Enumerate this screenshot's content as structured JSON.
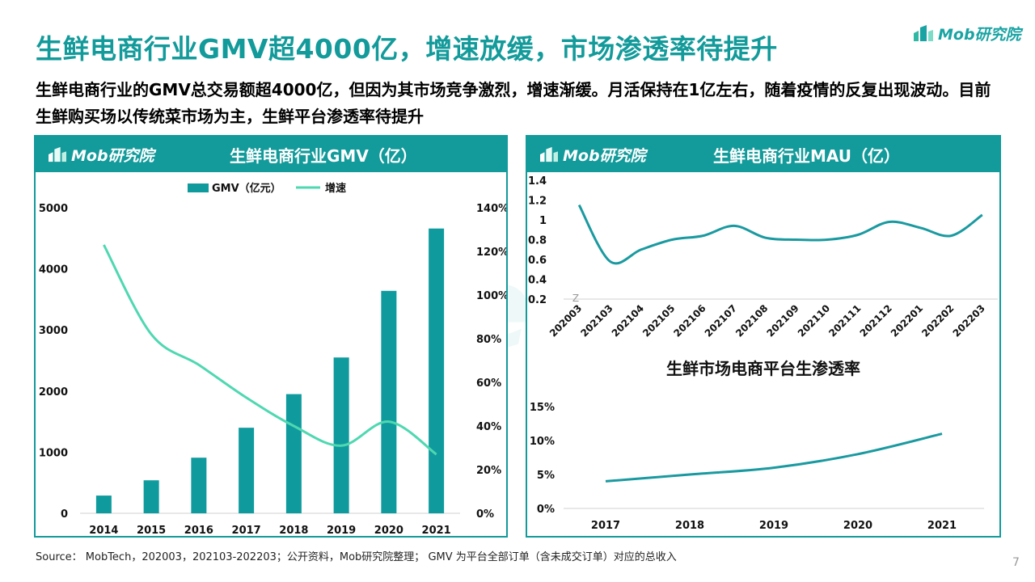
{
  "title": "生鲜电商行业GMV超4000亿，增速放缓，市场渗透率待提升",
  "subtitle": "生鲜电商行业的GMV总交易额超4000亿，但因为其市场竞争激烈，增速渐缓。月活保持在1亿左右，随着疫情的反复出现波动。目前生鲜购买场以传统菜市场为主，生鲜平台渗透率待提升",
  "logo": {
    "text": "Mob研究院"
  },
  "watermark": "MobTech袤博",
  "colors": {
    "accent": "#139a9a",
    "bar": "#0f9b9e",
    "growth_line": "#4fd8b0",
    "line": "#1a9aa0"
  },
  "chart_data": [
    {
      "type": "bar",
      "title": "生鲜电商行业GMV（亿）",
      "categories": [
        "2014",
        "2015",
        "2016",
        "2017",
        "2018",
        "2019",
        "2020",
        "2021"
      ],
      "series": [
        {
          "name": "GMV（亿元）",
          "type": "bar",
          "axis": "left",
          "values": [
            290,
            540,
            910,
            1400,
            1950,
            2550,
            3640,
            4660
          ]
        },
        {
          "name": "增速",
          "type": "line",
          "axis": "right",
          "values": [
            123,
            82,
            68,
            53,
            40,
            31,
            42,
            27
          ]
        }
      ],
      "y_left": {
        "ticks": [
          "0",
          "1000",
          "2000",
          "3000",
          "4000",
          "5000"
        ],
        "ylim": [
          0,
          5000
        ]
      },
      "y_right": {
        "ticks": [
          "0%",
          "20%",
          "40%",
          "60%",
          "80%",
          "100%",
          "120%",
          "140%"
        ],
        "ylim": [
          0,
          140
        ]
      },
      "legend": "top-center",
      "grid": false
    },
    {
      "type": "line",
      "title": "生鲜电商行业MAU（亿）",
      "categories": [
        "202003",
        "202103",
        "202104",
        "202105",
        "202106",
        "202107",
        "202108",
        "202109",
        "202110",
        "202111",
        "202112",
        "202201",
        "202202",
        "202203"
      ],
      "values": [
        1.15,
        0.58,
        0.7,
        0.8,
        0.84,
        0.94,
        0.82,
        0.8,
        0.8,
        0.85,
        0.98,
        0.92,
        0.84,
        1.05
      ],
      "y_ticks": [
        "0.2",
        "0.4",
        "0.6",
        "0.8",
        "1",
        "1.2",
        "1.4"
      ],
      "ylim": [
        0.2,
        1.4
      ],
      "axis_break_mark": "Z",
      "grid": false
    },
    {
      "type": "line",
      "title": "生鲜市场电商平台生渗透率",
      "categories": [
        "2017",
        "2018",
        "2019",
        "2020",
        "2021"
      ],
      "values": [
        4,
        5,
        6,
        8,
        11
      ],
      "y_ticks": [
        "0%",
        "5%",
        "10%",
        "15%"
      ],
      "ylim": [
        0,
        15
      ],
      "grid": false
    }
  ],
  "source": "Source：  MobTech，202003，202103-202203；公开资料，Mob研究院整理；  GMV 为平台全部订单（含未成交订单）对应的总收入",
  "page_number": "7"
}
